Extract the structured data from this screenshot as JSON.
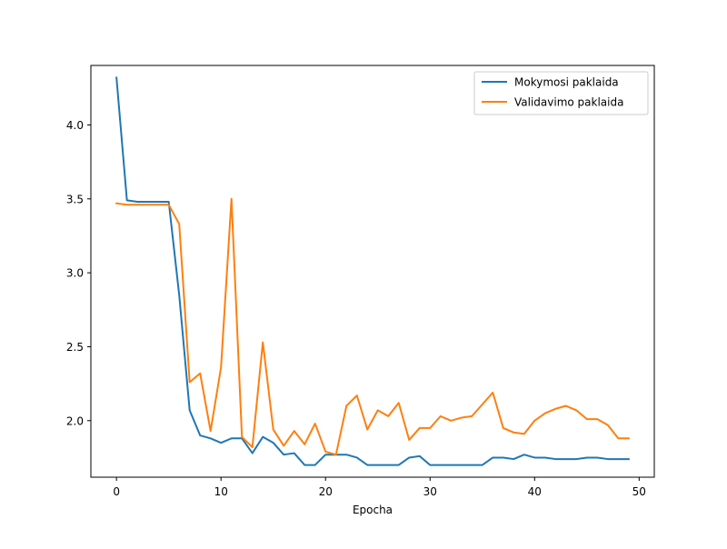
{
  "chart_data": {
    "type": "line",
    "title": "",
    "xlabel": "Epocha",
    "ylabel": "",
    "xlim": [
      -2.45,
      51.45
    ],
    "ylim": [
      1.6175,
      4.4025
    ],
    "xticks": [
      0,
      10,
      20,
      30,
      40,
      50
    ],
    "xtick_labels": [
      "0",
      "10",
      "20",
      "30",
      "40",
      "50"
    ],
    "yticks": [
      2.0,
      2.5,
      3.0,
      3.5,
      4.0
    ],
    "ytick_labels": [
      "2.0",
      "2.5",
      "3.0",
      "3.5",
      "4.0"
    ],
    "grid": false,
    "legend_position": "top-right",
    "x": [
      0,
      1,
      2,
      3,
      4,
      5,
      6,
      7,
      8,
      9,
      10,
      11,
      12,
      13,
      14,
      15,
      16,
      17,
      18,
      19,
      20,
      21,
      22,
      23,
      24,
      25,
      26,
      27,
      28,
      29,
      30,
      31,
      32,
      33,
      34,
      35,
      36,
      37,
      38,
      39,
      40,
      41,
      42,
      43,
      44,
      45,
      46,
      47,
      48,
      49
    ],
    "series": [
      {
        "name": "Mokymosi paklaida",
        "color": "#1f77b4",
        "values": [
          4.32,
          3.49,
          3.48,
          3.48,
          3.48,
          3.48,
          2.85,
          2.07,
          1.9,
          1.88,
          1.85,
          1.88,
          1.88,
          1.78,
          1.89,
          1.85,
          1.77,
          1.78,
          1.7,
          1.7,
          1.77,
          1.77,
          1.77,
          1.75,
          1.7,
          1.7,
          1.7,
          1.7,
          1.75,
          1.76,
          1.7,
          1.7,
          1.7,
          1.7,
          1.7,
          1.7,
          1.75,
          1.75,
          1.74,
          1.77,
          1.75,
          1.75,
          1.74,
          1.74,
          1.74,
          1.75,
          1.75,
          1.74,
          1.74,
          1.74
        ]
      },
      {
        "name": "Validavimo paklaida",
        "color": "#ff7f0e",
        "values": [
          3.47,
          3.46,
          3.46,
          3.46,
          3.46,
          3.46,
          3.33,
          2.26,
          2.32,
          1.93,
          2.36,
          3.5,
          1.89,
          1.82,
          2.53,
          1.94,
          1.83,
          1.93,
          1.84,
          1.98,
          1.79,
          1.77,
          2.1,
          2.17,
          1.94,
          2.07,
          2.03,
          2.12,
          1.87,
          1.95,
          1.95,
          2.03,
          2.0,
          2.02,
          2.03,
          2.11,
          2.19,
          1.95,
          1.92,
          1.91,
          2.0,
          2.05,
          2.08,
          2.1,
          2.07,
          2.01,
          2.01,
          1.97,
          1.88,
          1.88
        ]
      }
    ]
  }
}
